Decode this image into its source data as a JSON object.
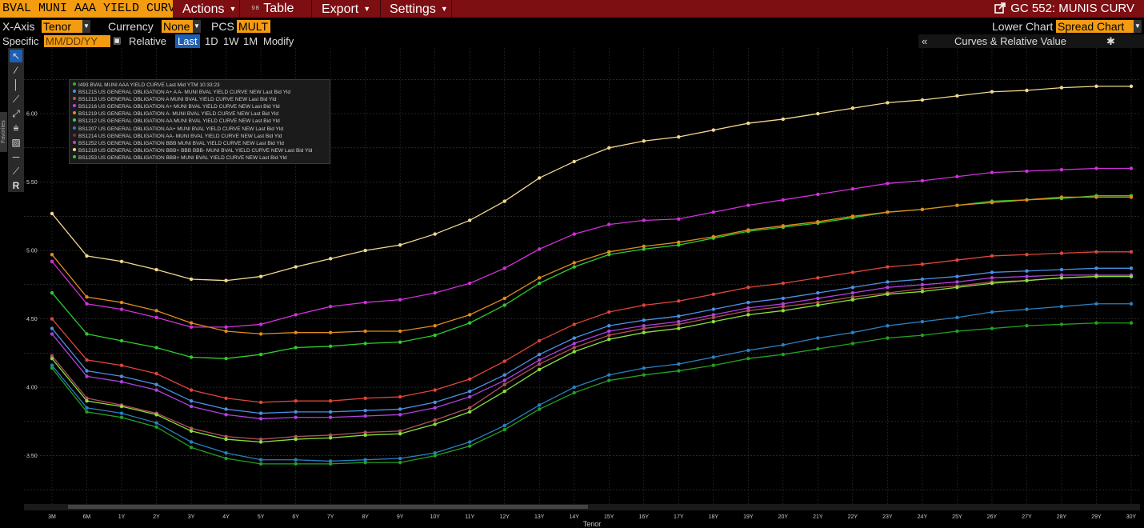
{
  "header": {
    "app_title": "BVAL MUNI AAA YIELD CURV",
    "menus": [
      {
        "label": "Actions",
        "has_caret": true
      },
      {
        "label": "Table",
        "prefix_icon": "table-icon"
      },
      {
        "label": "Export",
        "has_caret": true
      },
      {
        "label": "Settings",
        "has_caret": true
      }
    ],
    "function_title": "GC 552: MUNIS CURV"
  },
  "options": {
    "xaxis_label": "X-Axis",
    "xaxis_value": "Tenor",
    "currency_label": "Currency",
    "currency_value": "None",
    "pcs_label": "PCS",
    "pcs_value": "MULT",
    "lower_chart_label": "Lower Chart",
    "lower_chart_value": "Spread Chart"
  },
  "date_row": {
    "specific_label": "Specific",
    "date_placeholder": "MM/DD/YY",
    "relative_label": "Relative",
    "buttons": [
      "Last",
      "1D",
      "1W",
      "1M",
      "Modify"
    ],
    "active_button": "Last",
    "collapse_icon": "«",
    "pane_title": "Curves & Relative Value",
    "settings_icon": "gear-icon"
  },
  "toolbar": {
    "tools": [
      "pointer-icon",
      "pen-icon",
      "vertical-line-icon",
      "trend-line-icon",
      "ray-icon",
      "extended-line-icon",
      "fibonacci-icon",
      "channel-icon",
      "horizontal-line-icon",
      "line-segment-icon",
      "text-icon"
    ],
    "favorites_label": "Favorites"
  },
  "legend": [
    {
      "label": "I493 BVAL MUNI AAA YIELD CURVE Last Mid YTM 10:33:23",
      "color": "#2fb02f"
    },
    {
      "label": "BS1215 US GENERAL OBLIGATION A+ A A- MUNI BVAL YIELD CURVE NEW Last Bid Yld",
      "color": "#4a90e2"
    },
    {
      "label": "BS1213 US GENERAL OBLIGATION A MUNI BVAL YIELD CURVE NEW Last Bid Yld",
      "color": "#e0453a"
    },
    {
      "label": "BS1216 US GENERAL OBLIGATION A+ MUNI BVAL YIELD CURVE NEW Last Bid Yld",
      "color": "#c040e0"
    },
    {
      "label": "BS1219 US GENERAL OBLIGATION A- MUNI BVAL YIELD CURVE NEW Last Bid Yld",
      "color": "#e08a1e"
    },
    {
      "label": "BS1212 US GENERAL OBLIGATION AA MUNI BVAL YIELD CURVE NEW Last Bid Yld",
      "color": "#3fd13f"
    },
    {
      "label": "BS1207 US GENERAL OBLIGATION AA+ MUNI BVAL YIELD CURVE NEW Last Bid Yld",
      "color": "#2a7fc0"
    },
    {
      "label": "BS1214 US GENERAL OBLIGATION AA- MUNI BVAL YIELD CURVE NEW Last Bid Yld",
      "color": "#8a2a3a"
    },
    {
      "label": "BS1252 US GENERAL OBLIGATION BBB MUNI BVAL YIELD CURVE NEW Last Bid Yld",
      "color": "#b050c0"
    },
    {
      "label": "BS1218 US GENERAL OBLIGATION BBB+ BBB BBB- MUNI BVAL YIELD CURVE NEW Last Bid Yld",
      "color": "#f0d890"
    },
    {
      "label": "BS1253 US GENERAL OBLIGATION BBB+ MUNI BVAL YIELD CURVE NEW Last Bid Yld",
      "color": "#2ecc2e"
    }
  ],
  "chart_data": {
    "type": "line",
    "xlabel": "Tenor",
    "ylabel": "",
    "ylim": [
      3.1,
      6.48
    ],
    "y_ticks": [
      "3.50",
      "4.00",
      "4.50",
      "5.00",
      "5.50",
      "6.00"
    ],
    "grid": true,
    "legend_position": "top-left",
    "categories": [
      "3M",
      "6M",
      "1Y",
      "2Y",
      "3Y",
      "4Y",
      "5Y",
      "6Y",
      "7Y",
      "8Y",
      "9Y",
      "10Y",
      "11Y",
      "12Y",
      "13Y",
      "14Y",
      "15Y",
      "16Y",
      "17Y",
      "18Y",
      "19Y",
      "20Y",
      "21Y",
      "22Y",
      "23Y",
      "24Y",
      "25Y",
      "26Y",
      "27Y",
      "28Y",
      "29Y",
      "30Y"
    ],
    "series": [
      {
        "name": "BS1218 US GENERAL OBLIGATION BBB+ BBB BBB- MUNI BVAL YIELD CURVE NEW Last Bid Yld",
        "color": "#f0d890",
        "values": [
          5.27,
          4.96,
          4.92,
          4.86,
          4.79,
          4.78,
          4.81,
          4.88,
          4.94,
          5.0,
          5.04,
          5.12,
          5.22,
          5.36,
          5.53,
          5.65,
          5.75,
          5.8,
          5.83,
          5.88,
          5.93,
          5.96,
          6.0,
          6.04,
          6.08,
          6.1,
          6.13,
          6.16,
          6.17,
          6.19,
          6.2,
          6.2
        ]
      },
      {
        "name": "BS1252 US GENERAL OBLIGATION BBB MUNI BVAL YIELD CURVE NEW Last Bid Yld",
        "color": "#d030d8",
        "values": [
          4.92,
          4.61,
          4.57,
          4.51,
          4.44,
          4.44,
          4.46,
          4.53,
          4.59,
          4.62,
          4.64,
          4.69,
          4.76,
          4.87,
          5.01,
          5.12,
          5.19,
          5.22,
          5.23,
          5.28,
          5.33,
          5.37,
          5.41,
          5.45,
          5.49,
          5.51,
          5.54,
          5.57,
          5.58,
          5.59,
          5.6,
          5.6
        ]
      },
      {
        "name": "BS1253 US GENERAL OBLIGATION BBB+ MUNI BVAL YIELD CURVE NEW Last Bid Yld",
        "color": "#2ecc2e",
        "values": [
          4.69,
          4.39,
          4.34,
          4.29,
          4.22,
          4.21,
          4.24,
          4.29,
          4.3,
          4.32,
          4.33,
          4.38,
          4.47,
          4.6,
          4.76,
          4.88,
          4.97,
          5.01,
          5.04,
          5.09,
          5.14,
          5.17,
          5.2,
          5.24,
          5.28,
          5.3,
          5.33,
          5.36,
          5.37,
          5.38,
          5.4,
          5.4
        ]
      },
      {
        "name": "BS1219 US GENERAL OBLIGATION A- MUNI BVAL YIELD CURVE NEW Last Bid Yld",
        "color": "#e08a1e",
        "values": [
          4.97,
          4.66,
          4.62,
          4.56,
          4.47,
          4.41,
          4.39,
          4.4,
          4.4,
          4.41,
          4.41,
          4.45,
          4.53,
          4.65,
          4.8,
          4.91,
          4.99,
          5.03,
          5.06,
          5.1,
          5.15,
          5.18,
          5.21,
          5.25,
          5.28,
          5.3,
          5.33,
          5.35,
          5.37,
          5.39,
          5.39,
          5.39
        ]
      },
      {
        "name": "BS1213 US GENERAL OBLIGATION A MUNI BVAL YIELD CURVE NEW Last Bid Yld",
        "color": "#e0453a",
        "values": [
          4.5,
          4.2,
          4.16,
          4.1,
          3.98,
          3.92,
          3.89,
          3.9,
          3.9,
          3.92,
          3.93,
          3.98,
          4.06,
          4.19,
          4.34,
          4.46,
          4.55,
          4.6,
          4.63,
          4.68,
          4.73,
          4.76,
          4.8,
          4.84,
          4.88,
          4.9,
          4.93,
          4.96,
          4.97,
          4.98,
          4.99,
          4.99
        ]
      },
      {
        "name": "BS1215 US GENERAL OBLIGATION A+ A A- MUNI BVAL YIELD CURVE NEW Last Bid Yld",
        "color": "#4a90e2",
        "values": [
          4.43,
          4.12,
          4.08,
          4.02,
          3.9,
          3.84,
          3.81,
          3.82,
          3.82,
          3.83,
          3.84,
          3.89,
          3.97,
          4.09,
          4.24,
          4.36,
          4.45,
          4.49,
          4.52,
          4.57,
          4.62,
          4.65,
          4.69,
          4.73,
          4.77,
          4.79,
          4.81,
          4.84,
          4.85,
          4.86,
          4.87,
          4.87
        ]
      },
      {
        "name": "BS1216 US GENERAL OBLIGATION A+ MUNI BVAL YIELD CURVE NEW Last Bid Yld",
        "color": "#b040e0",
        "values": [
          4.39,
          4.08,
          4.04,
          3.98,
          3.86,
          3.8,
          3.77,
          3.78,
          3.78,
          3.79,
          3.8,
          3.85,
          3.93,
          4.05,
          4.2,
          4.32,
          4.41,
          4.45,
          4.48,
          4.53,
          4.58,
          4.61,
          4.65,
          4.69,
          4.73,
          4.75,
          4.77,
          4.8,
          4.81,
          4.82,
          4.82,
          4.82
        ]
      },
      {
        "name": "BS1214 US GENERAL OBLIGATION AA- MUNI BVAL YIELD CURVE NEW Last Bid Yld",
        "color": "#b0505a",
        "values": [
          4.23,
          3.92,
          3.87,
          3.81,
          3.7,
          3.64,
          3.62,
          3.64,
          3.65,
          3.67,
          3.68,
          3.76,
          3.85,
          4.02,
          4.17,
          4.29,
          4.38,
          4.43,
          4.46,
          4.51,
          4.56,
          4.59,
          4.62,
          4.66,
          4.69,
          4.72,
          4.74,
          4.77,
          4.78,
          4.8,
          4.81,
          4.81
        ]
      },
      {
        "name": "BS1212 US GENERAL OBLIGATION AA MUNI BVAL YIELD CURVE NEW Last Bid Yld",
        "color": "#8adf3a",
        "values": [
          4.21,
          3.9,
          3.86,
          3.8,
          3.68,
          3.62,
          3.6,
          3.62,
          3.63,
          3.65,
          3.66,
          3.73,
          3.82,
          3.97,
          4.13,
          4.26,
          4.35,
          4.4,
          4.43,
          4.48,
          4.53,
          4.56,
          4.6,
          4.64,
          4.68,
          4.7,
          4.73,
          4.76,
          4.78,
          4.8,
          4.81,
          4.81
        ]
      },
      {
        "name": "BS1207 US GENERAL OBLIGATION AA+ MUNI BVAL YIELD CURVE NEW Last Bid Yld",
        "color": "#2a7fc0",
        "values": [
          4.16,
          3.85,
          3.81,
          3.74,
          3.6,
          3.52,
          3.47,
          3.47,
          3.46,
          3.47,
          3.48,
          3.52,
          3.6,
          3.72,
          3.87,
          4.0,
          4.09,
          4.14,
          4.17,
          4.22,
          4.27,
          4.31,
          4.36,
          4.4,
          4.45,
          4.48,
          4.51,
          4.55,
          4.57,
          4.59,
          4.61,
          4.61
        ]
      },
      {
        "name": "I493 BVAL MUNI AAA YIELD CURVE Last Mid YTM 10:33:23",
        "color": "#22a022",
        "values": [
          4.14,
          3.82,
          3.78,
          3.71,
          3.56,
          3.48,
          3.44,
          3.44,
          3.44,
          3.45,
          3.45,
          3.5,
          3.57,
          3.69,
          3.84,
          3.96,
          4.05,
          4.09,
          4.12,
          4.16,
          4.21,
          4.24,
          4.28,
          4.32,
          4.36,
          4.38,
          4.41,
          4.43,
          4.45,
          4.46,
          4.47,
          4.47
        ]
      }
    ]
  }
}
